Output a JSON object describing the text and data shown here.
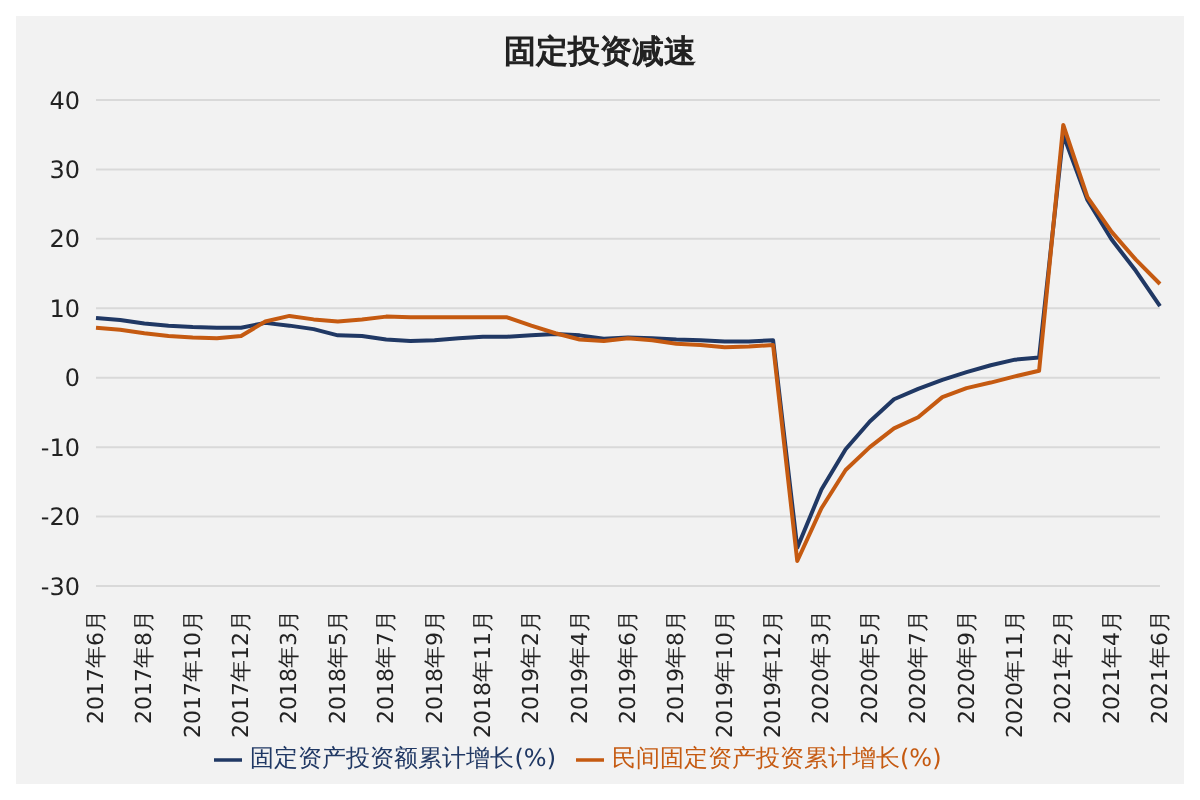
{
  "chart_data": {
    "type": "line",
    "title": "固定投资减速",
    "categories": [
      "2017年6月",
      null,
      "2017年8月",
      null,
      "2017年10月",
      null,
      "2017年12月",
      null,
      "2018年3月",
      null,
      "2018年5月",
      null,
      "2018年7月",
      null,
      "2018年9月",
      null,
      "2018年11月",
      null,
      "2019年2月",
      null,
      "2019年4月",
      null,
      "2019年6月",
      null,
      "2019年8月",
      null,
      "2019年10月",
      null,
      "2019年12月",
      null,
      "2020年3月",
      null,
      "2020年5月",
      null,
      "2020年7月",
      null,
      "2020年9月",
      null,
      "2020年11月",
      null,
      "2021年2月",
      null,
      "2021年4月",
      null,
      "2021年6月"
    ],
    "series": [
      {
        "name": "固定资产投资额累计增长(%)",
        "color": "#203864",
        "values": [
          8.6,
          8.3,
          7.8,
          7.5,
          7.3,
          7.2,
          7.2,
          7.9,
          7.5,
          7.0,
          6.1,
          6.0,
          5.5,
          5.3,
          5.4,
          5.7,
          5.9,
          5.9,
          6.1,
          6.3,
          6.1,
          5.6,
          5.8,
          5.7,
          5.5,
          5.4,
          5.2,
          5.2,
          5.4,
          -24.5,
          -16.1,
          -10.3,
          -6.3,
          -3.1,
          -1.6,
          -0.3,
          0.8,
          1.8,
          2.6,
          2.9,
          35.0,
          25.6,
          19.9,
          15.4,
          10.3
        ]
      },
      {
        "name": "民间固定资产投资累计增长(%)",
        "color": "#c55a11",
        "values": [
          7.2,
          6.9,
          6.4,
          6.0,
          5.8,
          5.7,
          6.0,
          8.1,
          8.9,
          8.4,
          8.1,
          8.4,
          8.8,
          8.7,
          8.7,
          8.7,
          8.7,
          8.7,
          7.5,
          6.4,
          5.5,
          5.3,
          5.7,
          5.4,
          4.9,
          4.7,
          4.4,
          4.5,
          4.7,
          -26.4,
          -18.8,
          -13.3,
          -10.0,
          -7.3,
          -5.7,
          -2.8,
          -1.5,
          -0.7,
          0.2,
          1.0,
          36.4,
          26.0,
          21.0,
          17.0,
          13.5
        ]
      }
    ],
    "ylim": [
      -30,
      40
    ],
    "yticks": [
      -30,
      -20,
      -10,
      0,
      10,
      20,
      30,
      40
    ],
    "grid": "y",
    "legend": "bottom",
    "marker": "none",
    "line_style": "solid"
  }
}
